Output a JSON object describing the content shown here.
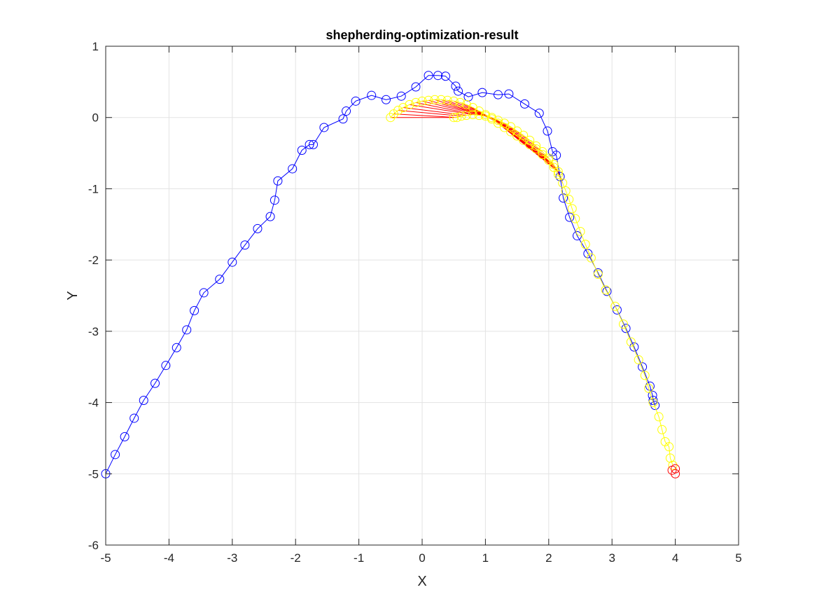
{
  "chart_data": {
    "type": "scatter",
    "title": "shepherding-optimization-result",
    "xlabel": "X",
    "ylabel": "Y",
    "xlim": [
      -5,
      5
    ],
    "ylim": [
      -6,
      1
    ],
    "xticks": [
      -5,
      -4,
      -3,
      -2,
      -1,
      0,
      1,
      2,
      3,
      4,
      5
    ],
    "yticks": [
      -6,
      -5,
      -4,
      -3,
      -2,
      -1,
      0,
      1
    ],
    "xtick_labels": [
      "-5",
      "-4",
      "-3",
      "-2",
      "-1",
      "0",
      "1",
      "2",
      "3",
      "4",
      "5"
    ],
    "ytick_labels": [
      "-6",
      "-5",
      "-4",
      "-3",
      "-2",
      "-1",
      "0",
      "1"
    ],
    "grid": true,
    "colors": {
      "shepherd": "#0000ff",
      "sheep": "#ffff00",
      "links": "#ff0000",
      "goal": "#ff0000"
    },
    "series": [
      {
        "marker": "circle",
        "line": true,
        "color": "#0000ff",
        "points": [
          [
            -5.0,
            -5.0
          ],
          [
            -4.85,
            -4.73
          ],
          [
            -4.7,
            -4.48
          ],
          [
            -4.55,
            -4.22
          ],
          [
            -4.4,
            -3.97
          ],
          [
            -4.22,
            -3.73
          ],
          [
            -4.05,
            -3.48
          ],
          [
            -3.88,
            -3.23
          ],
          [
            -3.72,
            -2.98
          ],
          [
            -3.6,
            -2.71
          ],
          [
            -3.45,
            -2.46
          ],
          [
            -3.2,
            -2.27
          ],
          [
            -3.0,
            -2.03
          ],
          [
            -2.8,
            -1.79
          ],
          [
            -2.6,
            -1.56
          ],
          [
            -2.4,
            -1.39
          ],
          [
            -2.33,
            -1.16
          ],
          [
            -2.28,
            -0.89
          ],
          [
            -2.05,
            -0.72
          ],
          [
            -1.9,
            -0.46
          ],
          [
            -1.78,
            -0.38
          ],
          [
            -1.72,
            -0.38
          ],
          [
            -1.55,
            -0.14
          ],
          [
            -1.25,
            -0.02
          ],
          [
            -1.2,
            0.09
          ],
          [
            -1.05,
            0.23
          ],
          [
            -0.8,
            0.31
          ],
          [
            -0.57,
            0.25
          ],
          [
            -0.33,
            0.3
          ],
          [
            -0.1,
            0.43
          ],
          [
            0.1,
            0.59
          ],
          [
            0.25,
            0.59
          ],
          [
            0.37,
            0.58
          ],
          [
            0.53,
            0.44
          ],
          [
            0.57,
            0.37
          ],
          [
            0.73,
            0.29
          ],
          [
            0.95,
            0.35
          ],
          [
            1.2,
            0.32
          ],
          [
            1.37,
            0.33
          ],
          [
            1.62,
            0.19
          ],
          [
            1.85,
            0.06
          ],
          [
            1.98,
            -0.19
          ],
          [
            2.06,
            -0.48
          ],
          [
            2.12,
            -0.53
          ],
          [
            2.18,
            -0.83
          ],
          [
            2.23,
            -1.13
          ],
          [
            2.33,
            -1.4
          ],
          [
            2.45,
            -1.66
          ],
          [
            2.62,
            -1.91
          ],
          [
            2.78,
            -2.18
          ],
          [
            2.92,
            -2.44
          ],
          [
            3.08,
            -2.7
          ],
          [
            3.22,
            -2.96
          ],
          [
            3.35,
            -3.22
          ],
          [
            3.48,
            -3.5
          ],
          [
            3.6,
            -3.77
          ],
          [
            3.64,
            -3.9
          ],
          [
            3.65,
            -3.97
          ],
          [
            3.68,
            -4.04
          ]
        ]
      },
      {
        "marker": "circle",
        "line": true,
        "color": "#ffff00",
        "points": [
          [
            -0.5,
            0.0
          ],
          [
            -0.45,
            0.05
          ],
          [
            -0.38,
            0.1
          ],
          [
            -0.3,
            0.14
          ],
          [
            -0.2,
            0.18
          ],
          [
            -0.1,
            0.21
          ],
          [
            0.0,
            0.23
          ],
          [
            0.1,
            0.24
          ],
          [
            0.2,
            0.25
          ],
          [
            0.3,
            0.25
          ],
          [
            0.4,
            0.24
          ],
          [
            0.5,
            0.23
          ],
          [
            0.6,
            0.21
          ],
          [
            0.7,
            0.18
          ],
          [
            0.8,
            0.14
          ],
          [
            0.9,
            0.09
          ],
          [
            1.0,
            0.04
          ],
          [
            1.1,
            -0.02
          ],
          [
            1.2,
            -0.08
          ],
          [
            1.3,
            -0.14
          ],
          [
            1.4,
            -0.2
          ],
          [
            1.5,
            -0.26
          ],
          [
            1.6,
            -0.32
          ],
          [
            1.7,
            -0.38
          ],
          [
            1.8,
            -0.44
          ],
          [
            1.9,
            -0.52
          ],
          [
            2.0,
            -0.6
          ],
          [
            2.08,
            -0.7
          ],
          [
            2.15,
            -0.8
          ],
          [
            2.22,
            -0.92
          ],
          [
            2.27,
            -1.03
          ],
          [
            2.32,
            -1.15
          ],
          [
            2.37,
            -1.28
          ],
          [
            2.42,
            -1.42
          ],
          [
            2.5,
            -1.6
          ],
          [
            2.58,
            -1.78
          ],
          [
            2.67,
            -1.97
          ],
          [
            2.78,
            -2.2
          ],
          [
            2.9,
            -2.42
          ],
          [
            3.05,
            -2.65
          ],
          [
            3.18,
            -2.9
          ],
          [
            3.3,
            -3.15
          ],
          [
            3.42,
            -3.4
          ],
          [
            3.52,
            -3.62
          ],
          [
            3.58,
            -3.8
          ],
          [
            3.65,
            -4.0
          ],
          [
            3.74,
            -4.2
          ],
          [
            3.79,
            -4.38
          ],
          [
            3.84,
            -4.55
          ],
          [
            3.9,
            -4.62
          ],
          [
            3.92,
            -4.78
          ],
          [
            3.96,
            -4.88
          ]
        ]
      },
      {
        "marker": "circle",
        "line": true,
        "color": "#ffff00",
        "points": [
          [
            0.5,
            0.0
          ],
          [
            0.55,
            0.0
          ],
          [
            0.62,
            0.02
          ],
          [
            0.7,
            0.03
          ],
          [
            0.8,
            0.04
          ],
          [
            0.9,
            0.03
          ],
          [
            1.0,
            0.02
          ],
          [
            1.1,
            0.0
          ],
          [
            1.2,
            -0.04
          ],
          [
            1.3,
            -0.08
          ],
          [
            1.4,
            -0.13
          ],
          [
            1.5,
            -0.19
          ],
          [
            1.6,
            -0.25
          ],
          [
            1.7,
            -0.32
          ],
          [
            1.8,
            -0.4
          ],
          [
            1.9,
            -0.48
          ],
          [
            2.0,
            -0.57
          ],
          [
            2.08,
            -0.66
          ],
          [
            2.15,
            -0.76
          ]
        ]
      },
      {
        "marker": "circle",
        "line": false,
        "color": "#ff0000",
        "points": [
          [
            3.95,
            -4.95
          ],
          [
            4.0,
            -4.93
          ],
          [
            4.0,
            -5.0
          ]
        ]
      }
    ]
  }
}
